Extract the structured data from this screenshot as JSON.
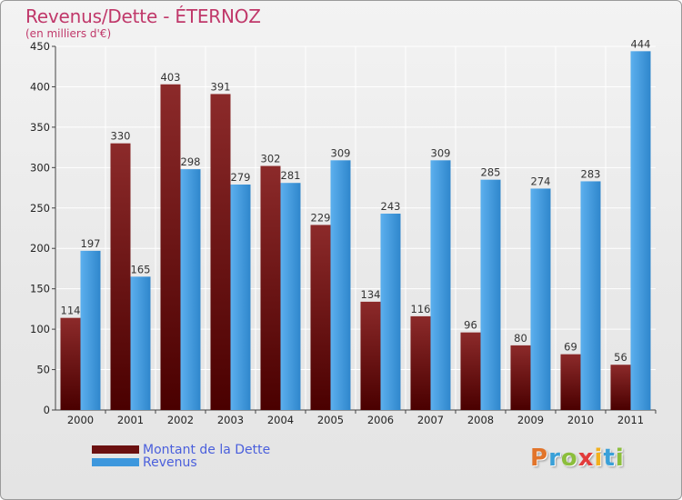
{
  "header": {
    "title": "Revenus/Dette - ÉTERNOZ",
    "subtitle": "(en milliers d'€)"
  },
  "legend": {
    "items": [
      {
        "label": "Montant de la Dette",
        "color": "#6b1010"
      },
      {
        "label": "Revenus",
        "color": "#3d97dd"
      }
    ]
  },
  "logo": {
    "text": "Proxiti",
    "colors": [
      "#e2742a",
      "#3aa0d8",
      "#8cbe3c",
      "#e23b3b",
      "#f2b01e",
      "#3aa0d8",
      "#8cbe3c"
    ]
  },
  "chart_data": {
    "type": "bar",
    "categories": [
      "2000",
      "2001",
      "2002",
      "2003",
      "2004",
      "2005",
      "2006",
      "2007",
      "2008",
      "2009",
      "2010",
      "2011"
    ],
    "series": [
      {
        "name": "Montant de la Dette",
        "color": "#6b1010",
        "values": [
          114,
          330,
          403,
          391,
          302,
          229,
          134,
          116,
          96,
          80,
          69,
          56
        ]
      },
      {
        "name": "Revenus",
        "color": "#3d97dd",
        "values": [
          197,
          165,
          298,
          279,
          281,
          309,
          243,
          309,
          285,
          274,
          283,
          444
        ]
      }
    ],
    "ylim": [
      0,
      450
    ],
    "yticks": [
      0,
      50,
      100,
      150,
      200,
      250,
      300,
      350,
      400,
      450
    ],
    "grid": true,
    "legend_position": "bottom-left"
  }
}
